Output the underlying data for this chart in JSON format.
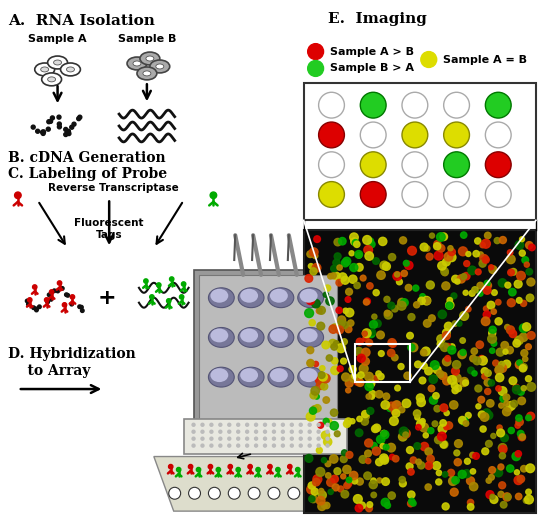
{
  "title_A": "A.  RNA Isolation",
  "title_E": "E.  Imaging",
  "title_B": "B. cDNA Generation",
  "title_C": "C. Labeling of Probe",
  "title_D": "D. Hybridization\n    to Array",
  "label_rev_trans": "Reverse Transcriptase",
  "label_fluor": "Fluorescent\nTags",
  "label_sample_a": "Sample A",
  "label_sample_b": "Sample B",
  "legend_red": "Sample A > B",
  "legend_green": "Sample B > A",
  "legend_yellow": "Sample A = B",
  "bg_color": "#ffffff",
  "grid_pattern": [
    [
      "w",
      "g",
      "w",
      "w",
      "g"
    ],
    [
      "r",
      "w",
      "y",
      "y",
      "w"
    ],
    [
      "w",
      "y",
      "w",
      "g",
      "r"
    ],
    [
      "y",
      "r",
      "w",
      "w",
      "w"
    ]
  ],
  "figsize": [
    5.48,
    5.22
  ],
  "dpi": 100
}
